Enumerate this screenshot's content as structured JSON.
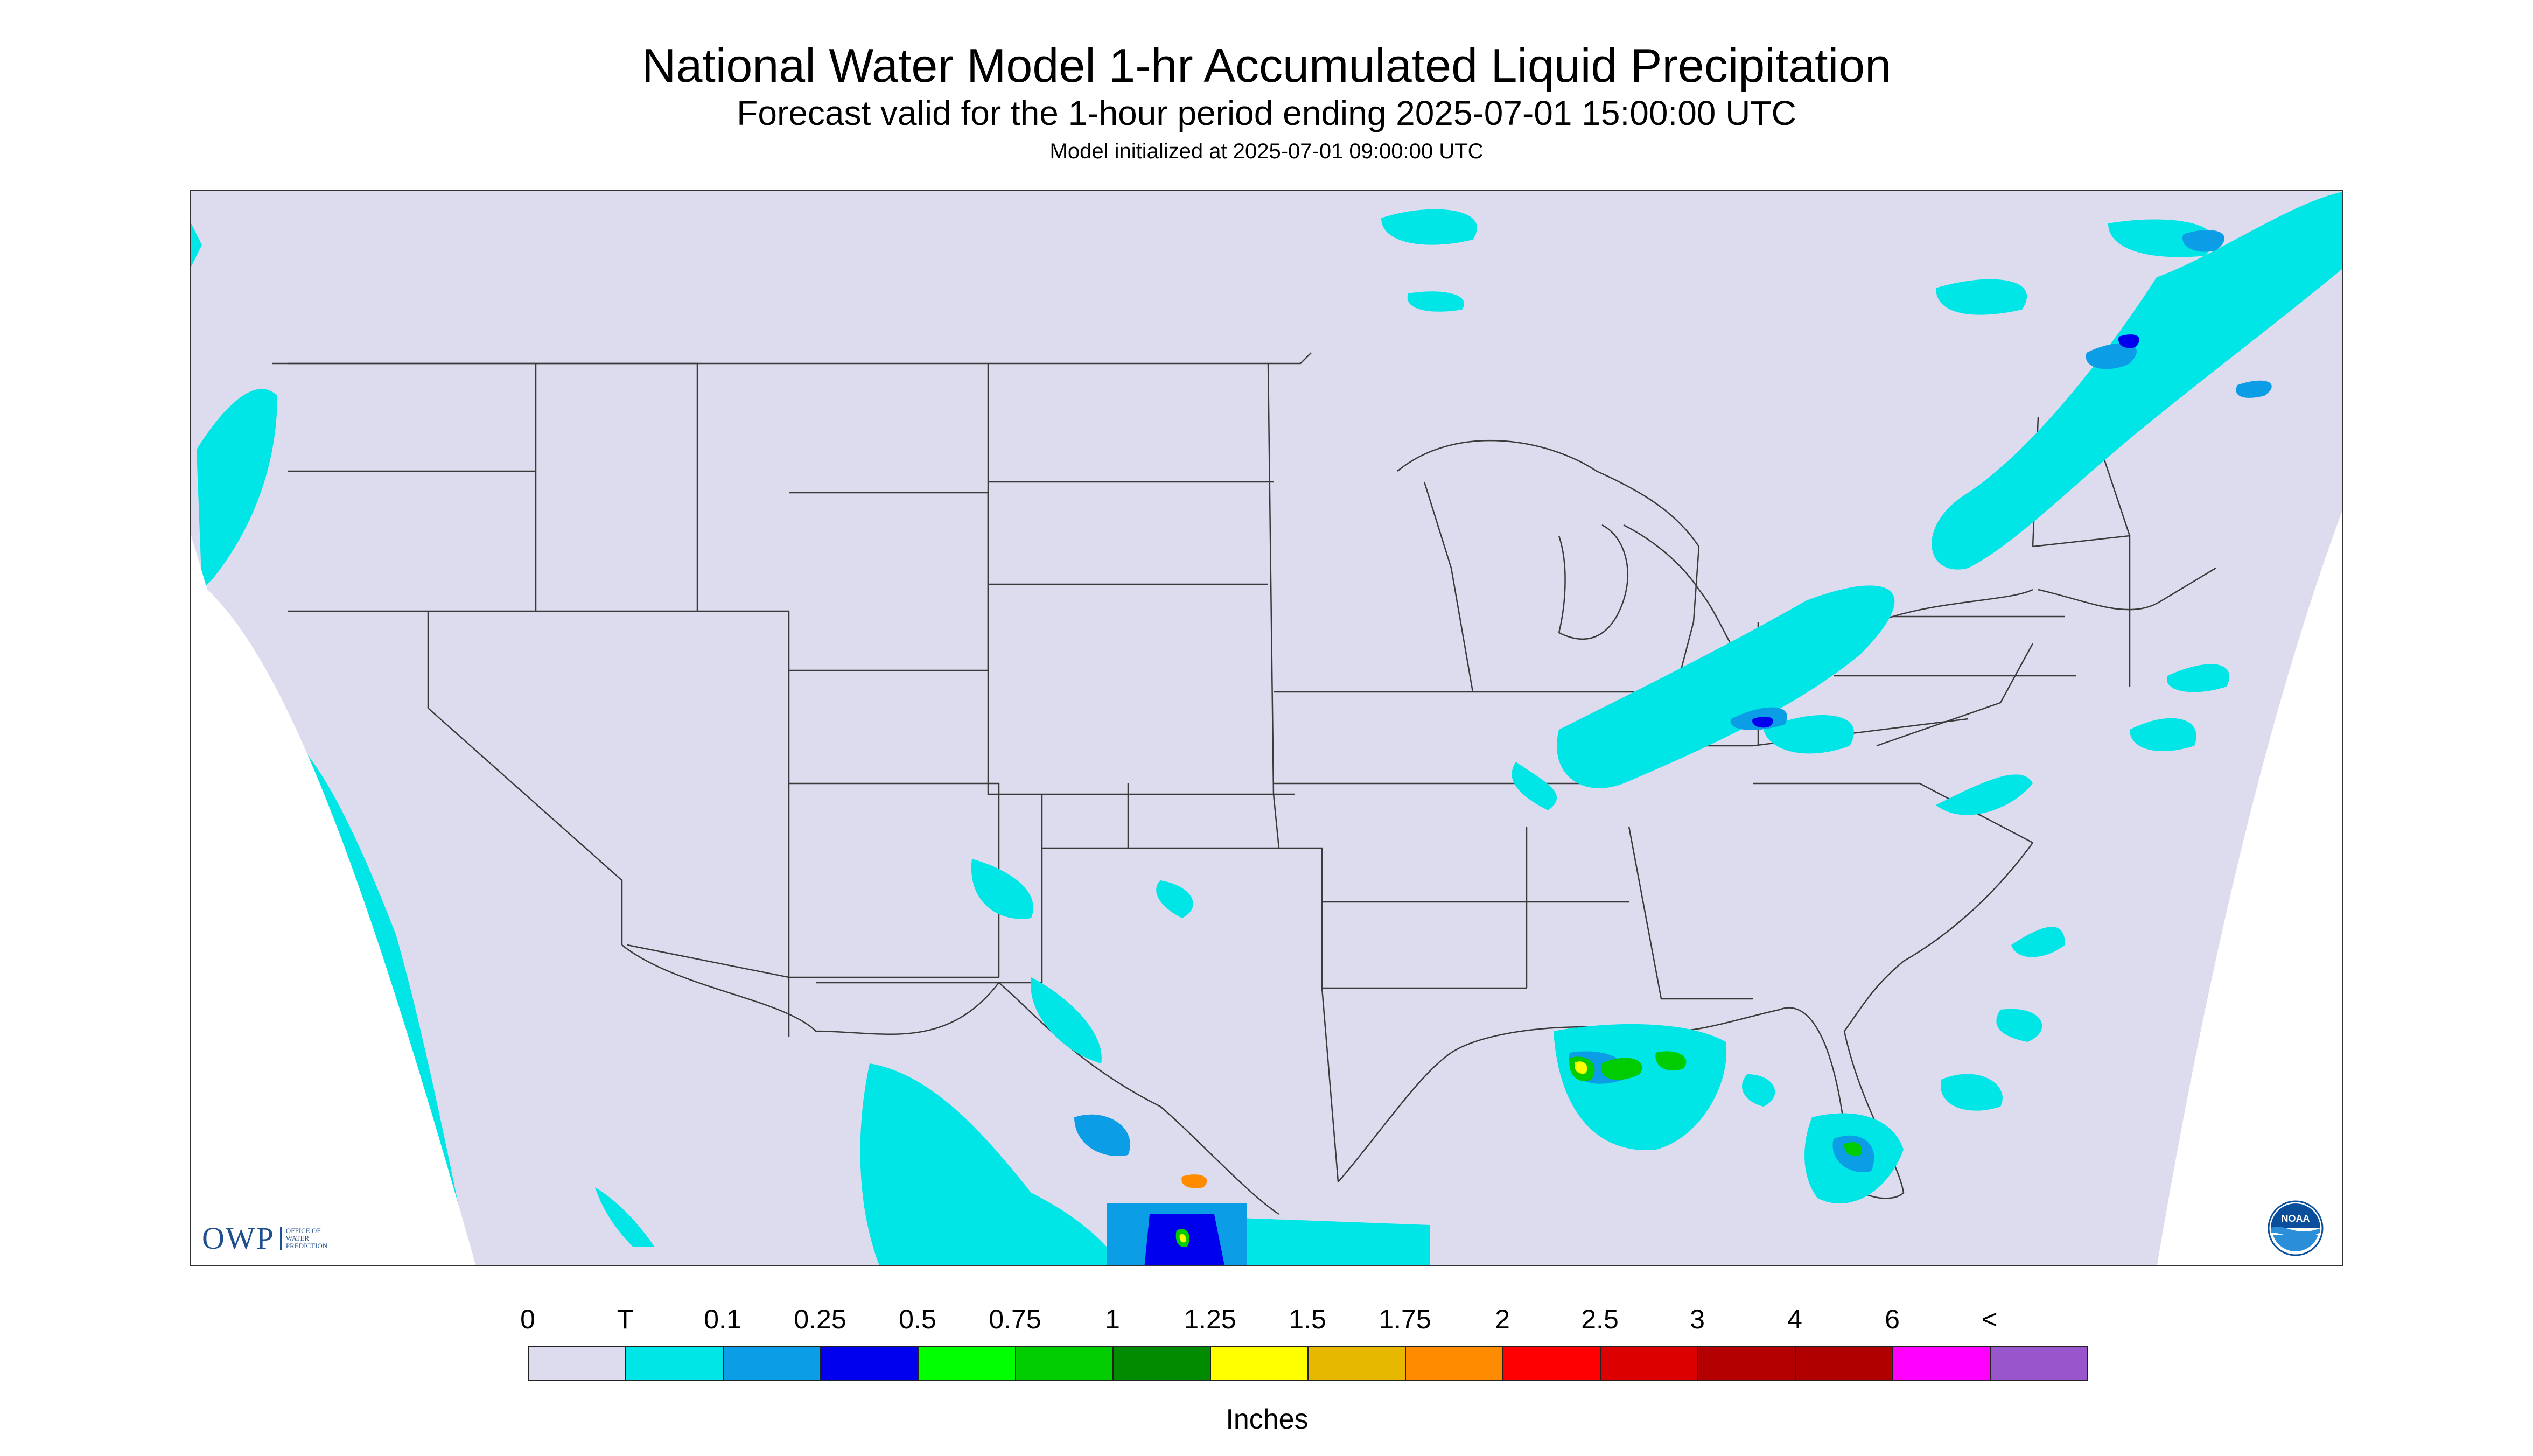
{
  "header": {
    "title": "National Water Model 1-hr Accumulated Liquid Precipitation",
    "subtitle": "Forecast valid for the 1-hour period ending 2025-07-01 15:00:00 UTC",
    "init": "Model initialized at 2025-07-01 09:00:00 UTC"
  },
  "map": {
    "land_color": "#dcdcee",
    "state_line_color": "#444444",
    "precip_colors": {
      "trace": "#00e5e5",
      "light": "#0b9ee6",
      "moderate": "#0000ee",
      "heavy_green": "#00cc00",
      "heavy_yellow": "#ffff00",
      "heavy_orange": "#ff8c00"
    }
  },
  "branding": {
    "owp_mark": "OWP",
    "owp_text": "OFFICE OF\nWATER\nPREDICTION",
    "noaa_logo_text": "NOAA"
  },
  "legend": {
    "tick_labels": [
      "0",
      "T",
      "0.1",
      "0.25",
      "0.5",
      "0.75",
      "1",
      "1.25",
      "1.5",
      "1.75",
      "2",
      "2.5",
      "3",
      "4",
      "6",
      "<"
    ],
    "colors": [
      "#dcdcee",
      "#00e5e5",
      "#0b9ee6",
      "#0000ee",
      "#00ff00",
      "#00cc00",
      "#008b00",
      "#ffff00",
      "#e6b800",
      "#ff8c00",
      "#ff0000",
      "#dd0000",
      "#b40000",
      "#b00000",
      "#ff00ff",
      "#9955cc"
    ],
    "units": "Inches"
  }
}
